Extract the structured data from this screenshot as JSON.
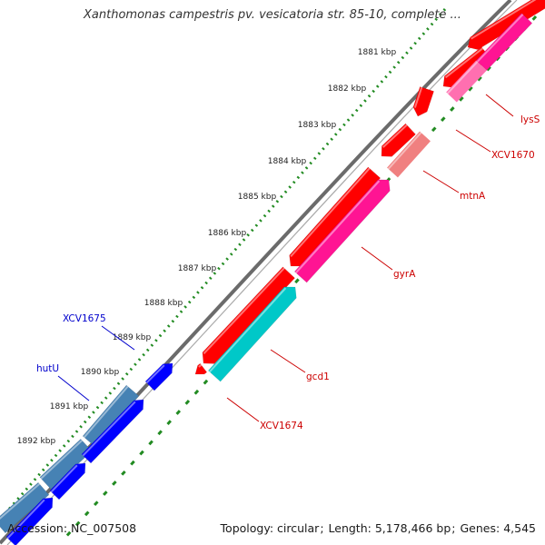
{
  "title": "Xanthomonas campestris pv. vesicatoria str. 85-10, complete ...",
  "footer": {
    "accession_label": "Accession:",
    "accession": "NC_007508",
    "topology_label": "Topology:",
    "topology": "circular",
    "length_label": "Length:",
    "length": "5,178,466 bp",
    "genes_label": "Genes:",
    "genes": "4,545"
  },
  "colors": {
    "forward_cds": "#ff0000",
    "forward_cds_light": "#f08080",
    "reverse_cds": "#ff1493",
    "reverse_cds_light": "#ff6fb0",
    "reverse_other": "#00c8c8",
    "forward_blue": "#0000ff",
    "forward_steel": "#4682b4",
    "backbone": "#6b6b6b",
    "ticks": "#228b22",
    "scale_text": "#222222",
    "label_red": "#cc0000",
    "label_blue": "#0000cc"
  },
  "scale": {
    "unit": "kbp",
    "ticks": [
      "1881 kbp",
      "1882 kbp",
      "1883 kbp",
      "1884 kbp",
      "1885 kbp",
      "1886 kbp",
      "1887 kbp",
      "1888 kbp",
      "1889 kbp",
      "1890 kbp",
      "1891 kbp",
      "1892 kbp"
    ]
  },
  "gene_labels": [
    {
      "text": "lysS",
      "color": "red"
    },
    {
      "text": "XCV1670",
      "color": "red"
    },
    {
      "text": "mtnA",
      "color": "red"
    },
    {
      "text": "gyrA",
      "color": "red"
    },
    {
      "text": "gcd1",
      "color": "red"
    },
    {
      "text": "XCV1674",
      "color": "red"
    },
    {
      "text": "XCV1675",
      "color": "blue"
    },
    {
      "text": "hutU",
      "color": "blue"
    }
  ]
}
